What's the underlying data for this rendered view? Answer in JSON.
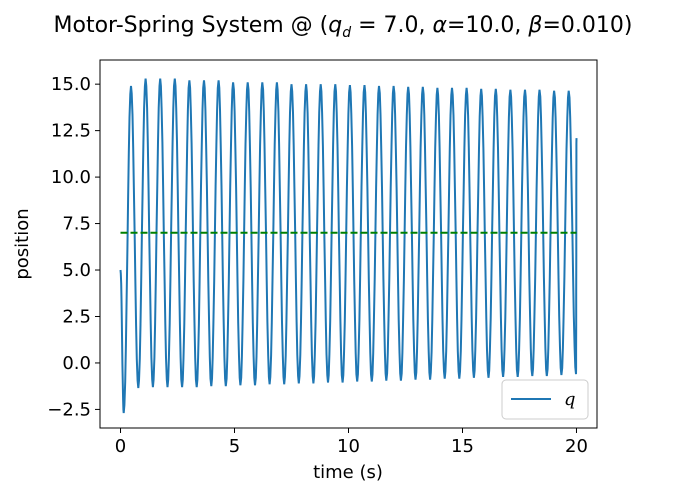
{
  "chart_data": {
    "type": "line",
    "title": "Motor-Spring System @ (q_d = 7.0, α=10.0, β=0.010)",
    "title_parts": {
      "prefix": "Motor-Spring System @ (",
      "q": "q",
      "d_subscript": "d",
      "after_qd": " = 7.0, ",
      "alpha": "α",
      "after_alpha": "=10.0, ",
      "beta": "β",
      "after_beta": "=0.010)"
    },
    "xlabel": "time (s)",
    "ylabel": "position",
    "xlim": [
      -0.9,
      20.9
    ],
    "ylim": [
      -3.5,
      16.3
    ],
    "xticks": [
      0,
      5,
      10,
      15,
      20
    ],
    "xtick_labels": [
      "0",
      "5",
      "10",
      "15",
      "20"
    ],
    "yticks": [
      -2.5,
      0.0,
      2.5,
      5.0,
      7.5,
      10.0,
      12.5,
      15.0
    ],
    "ytick_labels": [
      "−2.5",
      "0.0",
      "2.5",
      "5.0",
      "7.5",
      "10.0",
      "12.5",
      "15.0"
    ],
    "grid": false,
    "legend_position": "lower right",
    "series": [
      {
        "name": "q",
        "color": "#1f77b4",
        "style": "solid",
        "x": [
          0,
          0.14,
          0.46,
          0.78,
          1.1,
          1.42,
          1.74,
          2.06,
          2.38,
          2.7,
          3.02,
          3.34,
          3.66,
          3.98,
          4.3,
          4.62,
          4.94,
          5.26,
          5.58,
          5.9,
          6.22,
          6.54,
          6.86,
          7.18,
          7.5,
          7.82,
          8.14,
          8.46,
          8.78,
          9.1,
          9.42,
          9.74,
          10.06,
          10.38,
          10.7,
          11.02,
          11.34,
          11.66,
          11.98,
          12.3,
          12.62,
          12.94,
          13.26,
          13.58,
          13.9,
          14.22,
          14.54,
          14.86,
          15.18,
          15.5,
          15.82,
          16.14,
          16.46,
          16.78,
          17.1,
          17.42,
          17.74,
          18.06,
          18.38,
          18.7,
          19.02,
          19.34,
          19.66,
          19.98,
          20.0
        ],
        "values": [
          5.0,
          -2.7,
          14.9,
          -1.35,
          15.3,
          -1.3,
          15.3,
          -1.3,
          15.3,
          -1.3,
          15.2,
          -1.3,
          15.2,
          -1.25,
          15.2,
          -1.25,
          15.1,
          -1.2,
          15.1,
          -1.2,
          15.1,
          -1.15,
          15.1,
          -1.15,
          15.0,
          -1.1,
          15.0,
          -1.1,
          15.0,
          -1.05,
          15.0,
          -1.05,
          14.95,
          -1.0,
          14.95,
          -1.0,
          14.9,
          -0.95,
          14.9,
          -0.95,
          14.85,
          -0.9,
          14.85,
          -0.9,
          14.8,
          -0.85,
          14.8,
          -0.85,
          14.8,
          -0.8,
          14.75,
          -0.8,
          14.75,
          -0.75,
          14.7,
          -0.75,
          14.7,
          -0.7,
          14.7,
          -0.7,
          14.65,
          -0.65,
          14.65,
          -0.6,
          12.1
        ]
      },
      {
        "color": "#008000",
        "style": "dashed",
        "x": [
          0,
          20
        ],
        "values": [
          7.0,
          7.0
        ]
      }
    ]
  }
}
